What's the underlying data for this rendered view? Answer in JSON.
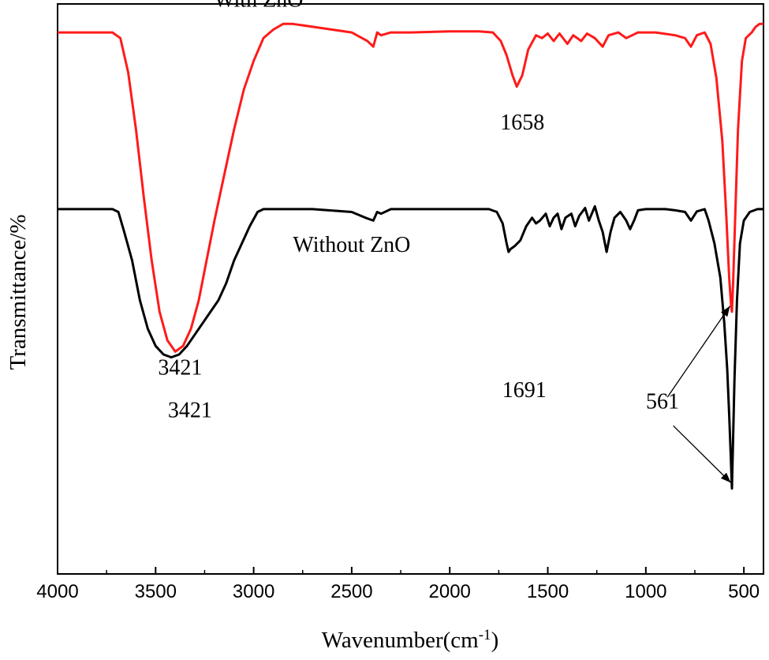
{
  "chart_data": {
    "type": "line",
    "title": "",
    "xlabel": "Wavenumber(cm",
    "xlabel_sup": "-1",
    "xlabel_suffix": ")",
    "ylabel": "Transmittance/%",
    "xlim": [
      4000,
      400
    ],
    "x_reversed": true,
    "y_ticks_shown": false,
    "grid": false,
    "x_ticks": [
      4000,
      3500,
      3000,
      2500,
      2000,
      1500,
      1000,
      500
    ],
    "x_tick_labels": [
      "4000",
      "3500",
      "3000",
      "2500",
      "2000",
      "1500",
      "1000",
      "500"
    ],
    "series": [
      {
        "name": "With  ZnO",
        "color": "#ff1a1a",
        "points": [
          [
            4000,
            0.95
          ],
          [
            3850,
            0.95
          ],
          [
            3720,
            0.95
          ],
          [
            3680,
            0.94
          ],
          [
            3640,
            0.88
          ],
          [
            3600,
            0.78
          ],
          [
            3560,
            0.66
          ],
          [
            3520,
            0.55
          ],
          [
            3480,
            0.46
          ],
          [
            3440,
            0.41
          ],
          [
            3400,
            0.39
          ],
          [
            3360,
            0.4
          ],
          [
            3320,
            0.43
          ],
          [
            3280,
            0.48
          ],
          [
            3240,
            0.55
          ],
          [
            3200,
            0.62
          ],
          [
            3150,
            0.7
          ],
          [
            3100,
            0.78
          ],
          [
            3050,
            0.85
          ],
          [
            3000,
            0.9
          ],
          [
            2950,
            0.94
          ],
          [
            2900,
            0.955
          ],
          [
            2850,
            0.965
          ],
          [
            2800,
            0.965
          ],
          [
            2700,
            0.96
          ],
          [
            2600,
            0.955
          ],
          [
            2500,
            0.95
          ],
          [
            2420,
            0.935
          ],
          [
            2390,
            0.925
          ],
          [
            2370,
            0.95
          ],
          [
            2350,
            0.945
          ],
          [
            2300,
            0.95
          ],
          [
            2200,
            0.95
          ],
          [
            2000,
            0.952
          ],
          [
            1850,
            0.952
          ],
          [
            1780,
            0.95
          ],
          [
            1740,
            0.935
          ],
          [
            1710,
            0.91
          ],
          [
            1680,
            0.875
          ],
          [
            1658,
            0.855
          ],
          [
            1630,
            0.875
          ],
          [
            1600,
            0.92
          ],
          [
            1560,
            0.945
          ],
          [
            1530,
            0.94
          ],
          [
            1500,
            0.948
          ],
          [
            1470,
            0.935
          ],
          [
            1440,
            0.948
          ],
          [
            1400,
            0.93
          ],
          [
            1370,
            0.945
          ],
          [
            1330,
            0.935
          ],
          [
            1300,
            0.948
          ],
          [
            1260,
            0.94
          ],
          [
            1220,
            0.925
          ],
          [
            1190,
            0.945
          ],
          [
            1140,
            0.95
          ],
          [
            1100,
            0.94
          ],
          [
            1070,
            0.945
          ],
          [
            1040,
            0.95
          ],
          [
            950,
            0.95
          ],
          [
            850,
            0.945
          ],
          [
            800,
            0.94
          ],
          [
            770,
            0.925
          ],
          [
            740,
            0.945
          ],
          [
            700,
            0.95
          ],
          [
            670,
            0.93
          ],
          [
            640,
            0.87
          ],
          [
            610,
            0.76
          ],
          [
            590,
            0.63
          ],
          [
            575,
            0.52
          ],
          [
            565,
            0.47
          ],
          [
            561,
            0.46
          ],
          [
            555,
            0.51
          ],
          [
            545,
            0.62
          ],
          [
            530,
            0.78
          ],
          [
            510,
            0.9
          ],
          [
            490,
            0.94
          ],
          [
            460,
            0.95
          ],
          [
            440,
            0.96
          ],
          [
            420,
            0.965
          ],
          [
            400,
            0.965
          ]
        ]
      },
      {
        "name": "Without ZnO",
        "color": "#000000",
        "points": [
          [
            4000,
            0.64
          ],
          [
            3850,
            0.64
          ],
          [
            3720,
            0.64
          ],
          [
            3690,
            0.635
          ],
          [
            3660,
            0.6
          ],
          [
            3620,
            0.55
          ],
          [
            3580,
            0.48
          ],
          [
            3540,
            0.43
          ],
          [
            3500,
            0.4
          ],
          [
            3460,
            0.385
          ],
          [
            3420,
            0.38
          ],
          [
            3380,
            0.385
          ],
          [
            3340,
            0.4
          ],
          [
            3300,
            0.42
          ],
          [
            3260,
            0.44
          ],
          [
            3220,
            0.46
          ],
          [
            3180,
            0.48
          ],
          [
            3140,
            0.51
          ],
          [
            3100,
            0.55
          ],
          [
            3060,
            0.58
          ],
          [
            3020,
            0.61
          ],
          [
            2980,
            0.635
          ],
          [
            2950,
            0.64
          ],
          [
            2850,
            0.64
          ],
          [
            2700,
            0.64
          ],
          [
            2500,
            0.635
          ],
          [
            2430,
            0.625
          ],
          [
            2390,
            0.62
          ],
          [
            2370,
            0.635
          ],
          [
            2350,
            0.632
          ],
          [
            2300,
            0.64
          ],
          [
            2000,
            0.64
          ],
          [
            1800,
            0.64
          ],
          [
            1760,
            0.635
          ],
          [
            1730,
            0.615
          ],
          [
            1710,
            0.58
          ],
          [
            1700,
            0.565
          ],
          [
            1690,
            0.57
          ],
          [
            1670,
            0.575
          ],
          [
            1640,
            0.585
          ],
          [
            1610,
            0.61
          ],
          [
            1580,
            0.625
          ],
          [
            1560,
            0.615
          ],
          [
            1540,
            0.62
          ],
          [
            1510,
            0.632
          ],
          [
            1490,
            0.61
          ],
          [
            1470,
            0.625
          ],
          [
            1450,
            0.632
          ],
          [
            1430,
            0.605
          ],
          [
            1410,
            0.625
          ],
          [
            1380,
            0.632
          ],
          [
            1360,
            0.61
          ],
          [
            1340,
            0.628
          ],
          [
            1310,
            0.642
          ],
          [
            1290,
            0.62
          ],
          [
            1260,
            0.645
          ],
          [
            1240,
            0.62
          ],
          [
            1220,
            0.6
          ],
          [
            1200,
            0.565
          ],
          [
            1180,
            0.6
          ],
          [
            1160,
            0.625
          ],
          [
            1130,
            0.635
          ],
          [
            1100,
            0.62
          ],
          [
            1080,
            0.605
          ],
          [
            1060,
            0.62
          ],
          [
            1040,
            0.638
          ],
          [
            1000,
            0.64
          ],
          [
            900,
            0.64
          ],
          [
            850,
            0.638
          ],
          [
            800,
            0.635
          ],
          [
            770,
            0.62
          ],
          [
            740,
            0.636
          ],
          [
            700,
            0.64
          ],
          [
            680,
            0.62
          ],
          [
            650,
            0.58
          ],
          [
            620,
            0.52
          ],
          [
            600,
            0.44
          ],
          [
            585,
            0.36
          ],
          [
            575,
            0.28
          ],
          [
            566,
            0.2
          ],
          [
            561,
            0.15
          ],
          [
            556,
            0.22
          ],
          [
            548,
            0.34
          ],
          [
            535,
            0.48
          ],
          [
            520,
            0.58
          ],
          [
            500,
            0.62
          ],
          [
            470,
            0.635
          ],
          [
            430,
            0.64
          ],
          [
            400,
            0.64
          ]
        ]
      }
    ],
    "annotations": [
      {
        "text": "With  ZnO",
        "x": 2975,
        "y": 0.995
      },
      {
        "text": "Without ZnO",
        "x": 2500,
        "y": 0.565
      },
      {
        "text": "3421",
        "x": 3375,
        "y": 0.35
      },
      {
        "text": "3421",
        "x": 3325,
        "y": 0.275
      },
      {
        "text": "1658",
        "x": 1630,
        "y": 0.78
      },
      {
        "text": "1691",
        "x": 1620,
        "y": 0.31
      },
      {
        "text": "561",
        "x": 915,
        "y": 0.29
      }
    ],
    "arrows": [
      {
        "from": [
          890,
          0.31
        ],
        "to": [
          571,
          0.47
        ]
      },
      {
        "from": [
          860,
          0.26
        ],
        "to": [
          566,
          0.16
        ]
      }
    ]
  }
}
